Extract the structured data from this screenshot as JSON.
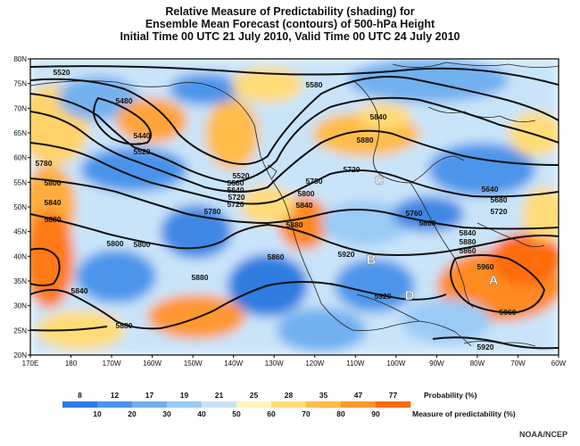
{
  "title": {
    "line1": "Relative Measure of Predictability (shading) for",
    "line2": "Ensemble Mean Forecast (contours) of 500-hPa Height",
    "line3": "Initial Time 00 UTC 21 July 2010, Valid Time 00 UTC 24 July 2010"
  },
  "axes": {
    "lat_labels": [
      "80N",
      "75N",
      "70N",
      "65N",
      "60N",
      "55N",
      "50N",
      "45N",
      "40N",
      "35N",
      "30N",
      "25N",
      "20N"
    ],
    "lon_labels": [
      "170E",
      "180",
      "170W",
      "160W",
      "150W",
      "140W",
      "130W",
      "120W",
      "110W",
      "100W",
      "90W",
      "80W",
      "70W",
      "60W"
    ]
  },
  "height_contours": {
    "unit": "m",
    "labels": [
      "5520",
      "5580",
      "5480",
      "5440",
      "5520",
      "5840",
      "5880",
      "5720",
      "5780",
      "5800",
      "5840",
      "5880",
      "5520",
      "5580",
      "5640",
      "5720",
      "5780",
      "5800",
      "5840",
      "5880",
      "5720",
      "5780",
      "5800",
      "5640",
      "5680",
      "5720",
      "5760",
      "5800",
      "5840",
      "5880",
      "5860",
      "5880",
      "5920",
      "5960",
      "5960",
      "5920",
      "5880",
      "5860",
      "5800",
      "5840",
      "5920"
    ]
  },
  "markers": [
    "A",
    "B",
    "C",
    "D"
  ],
  "legend": {
    "probability_values": [
      "8",
      "12",
      "17",
      "19",
      "21",
      "25",
      "28",
      "35",
      "47",
      "77"
    ],
    "probability_label": "Probability (%)",
    "predictability_values": [
      "10",
      "20",
      "30",
      "40",
      "50",
      "60",
      "70",
      "80",
      "90"
    ],
    "predictability_label": "Measure of predictability (%)",
    "colors": [
      "#2f7ce0",
      "#4d95ea",
      "#72b0f0",
      "#9acbf5",
      "#c7e3f9",
      "#fff4b8",
      "#ffdc78",
      "#ffbc4a",
      "#ff9830",
      "#ff6c10"
    ]
  },
  "credit": "NOAA/NCEP"
}
